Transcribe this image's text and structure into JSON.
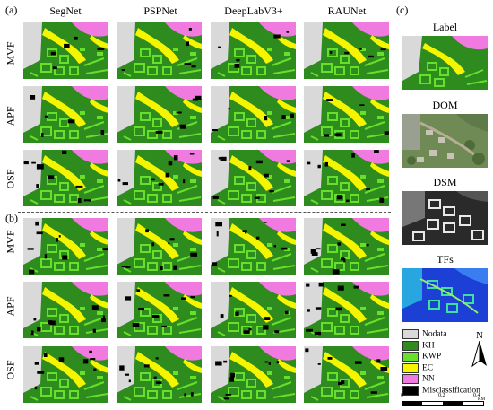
{
  "panels": {
    "a": "(a)",
    "b": "(b)",
    "c": "(c)"
  },
  "columns": [
    "SegNet",
    "PSPNet",
    "DeepLabV3+",
    "RAUNet"
  ],
  "rows": [
    "MVF",
    "APF",
    "OSF"
  ],
  "right_column": {
    "label": "Label",
    "dom": "DOM",
    "dsm": "DSM",
    "tfs": "TFs"
  },
  "legend": [
    {
      "name": "Nodata",
      "color": "#d9d9d9"
    },
    {
      "name": "KH",
      "color": "#2e8b1e"
    },
    {
      "name": "KWP",
      "color": "#66e02a"
    },
    {
      "name": "EC",
      "color": "#f5f500"
    },
    {
      "name": "NN",
      "color": "#f07ae0"
    },
    {
      "name": "Misclassification",
      "color": "#000000"
    }
  ],
  "scale_bar": {
    "ticks": [
      "0",
      "0.2",
      "0.4"
    ],
    "unit": "KM"
  },
  "north_arrow": "N"
}
